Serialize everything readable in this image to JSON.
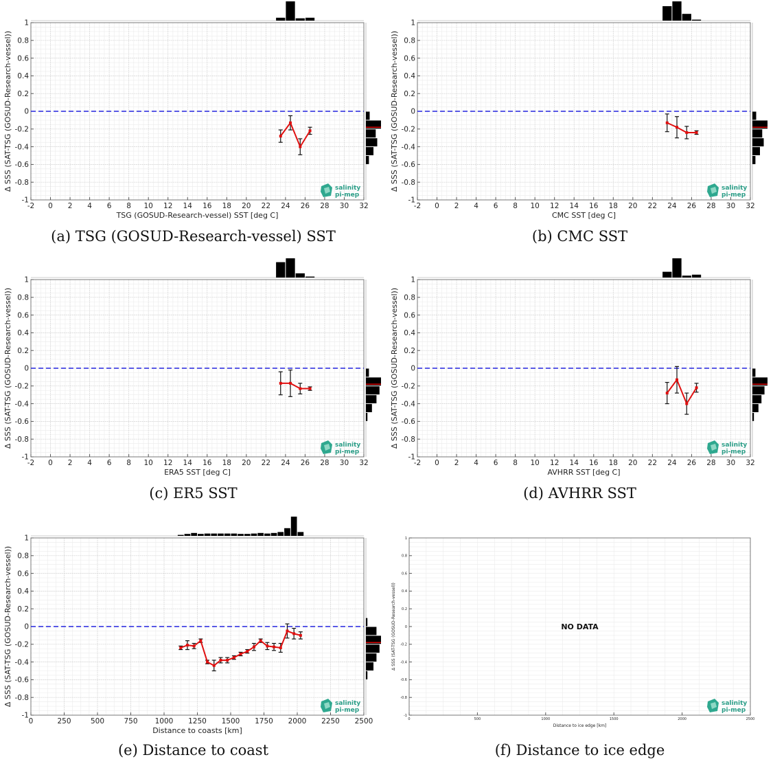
{
  "logo": {
    "line1": "salinity",
    "line2": "pi-mep"
  },
  "chart_data": [
    {
      "type": "line",
      "caption": "(a) TSG (GOSUD-Research-vessel) SST",
      "xlabel": "TSG (GOSUD-Research-vessel) SST [deg C]",
      "ylabel": "Δ SSS (SAT-TSG (GOSUD-Research-vessel))",
      "xlim": [
        -2,
        32
      ],
      "ylim": [
        -1,
        1
      ],
      "xticks": [
        -2,
        0,
        2,
        4,
        6,
        8,
        10,
        12,
        14,
        16,
        18,
        20,
        22,
        24,
        26,
        28,
        30,
        32
      ],
      "yticks": [
        1,
        0.8,
        0.6,
        0.4,
        0.2,
        0,
        -0.2,
        -0.4,
        -0.6,
        -0.8,
        -1
      ],
      "reference_line": 0,
      "series": [
        {
          "x": [
            23.5,
            24.5,
            25.5,
            26.5
          ],
          "y": [
            -0.28,
            -0.13,
            -0.4,
            -0.22
          ],
          "err": [
            0.07,
            0.08,
            0.09,
            0.04
          ]
        }
      ],
      "hist_top": {
        "x": [
          23.5,
          24.5,
          25.5,
          26.5
        ],
        "values": [
          0.15,
          1.0,
          0.12,
          0.15
        ]
      },
      "hist_right": {
        "y": [
          -0.05,
          -0.15,
          -0.25,
          -0.35,
          -0.45,
          -0.55
        ],
        "values": [
          0.25,
          1.0,
          0.65,
          0.75,
          0.5,
          0.2
        ],
        "median": -0.18
      }
    },
    {
      "type": "line",
      "caption": "(b) CMC SST",
      "xlabel": "CMC SST [deg C]",
      "ylabel": "Δ SSS (SAT-TSG (GOSUD-Research-vessel))",
      "xlim": [
        -2,
        32
      ],
      "ylim": [
        -1,
        1
      ],
      "xticks": [
        -2,
        0,
        2,
        4,
        6,
        8,
        10,
        12,
        14,
        16,
        18,
        20,
        22,
        24,
        26,
        28,
        30,
        32
      ],
      "yticks": [
        1,
        0.8,
        0.6,
        0.4,
        0.2,
        0,
        -0.2,
        -0.4,
        -0.6,
        -0.8,
        -1
      ],
      "reference_line": 0,
      "series": [
        {
          "x": [
            23.5,
            24.5,
            25.5,
            26.5
          ],
          "y": [
            -0.13,
            -0.18,
            -0.24,
            -0.24
          ],
          "err": [
            0.1,
            0.12,
            0.07,
            0.02
          ]
        }
      ],
      "hist_top": {
        "x": [
          23.5,
          24.5,
          25.5,
          26.5
        ],
        "values": [
          0.75,
          1.0,
          0.35,
          0.05
        ]
      },
      "hist_right": {
        "y": [
          -0.05,
          -0.15,
          -0.25,
          -0.35,
          -0.45,
          -0.55
        ],
        "values": [
          0.25,
          1.0,
          0.65,
          0.75,
          0.5,
          0.2
        ],
        "median": -0.18
      }
    },
    {
      "type": "line",
      "caption": "(c) ER5 SST",
      "xlabel": "ERA5 SST [deg C]",
      "ylabel": "Δ SSS (SAT-TSG (GOSUD-Research-vessel))",
      "xlim": [
        -2,
        32
      ],
      "ylim": [
        -1,
        1
      ],
      "xticks": [
        -2,
        0,
        2,
        4,
        6,
        8,
        10,
        12,
        14,
        16,
        18,
        20,
        22,
        24,
        26,
        28,
        30,
        32
      ],
      "yticks": [
        1,
        0.8,
        0.6,
        0.4,
        0.2,
        0,
        -0.2,
        -0.4,
        -0.6,
        -0.8,
        -1
      ],
      "reference_line": 0,
      "series": [
        {
          "x": [
            23.5,
            24.5,
            25.5,
            26.5
          ],
          "y": [
            -0.17,
            -0.17,
            -0.23,
            -0.23
          ],
          "err": [
            0.13,
            0.15,
            0.06,
            0.02
          ]
        }
      ],
      "hist_top": {
        "x": [
          23.5,
          24.5,
          25.5,
          26.5
        ],
        "values": [
          0.8,
          1.0,
          0.22,
          0.05
        ]
      },
      "hist_right": {
        "y": [
          -0.05,
          -0.15,
          -0.25,
          -0.35,
          -0.45,
          -0.55
        ],
        "values": [
          0.2,
          1.0,
          0.9,
          0.7,
          0.4,
          0.1
        ],
        "median": -0.18
      }
    },
    {
      "type": "line",
      "caption": "(d) AVHRR SST",
      "xlabel": "AVHRR SST [deg C]",
      "ylabel": "Δ SSS (SAT-TSG (GOSUD-Research-vessel))",
      "xlim": [
        -2,
        32
      ],
      "ylim": [
        -1,
        1
      ],
      "xticks": [
        -2,
        0,
        2,
        4,
        6,
        8,
        10,
        12,
        14,
        16,
        18,
        20,
        22,
        24,
        26,
        28,
        30,
        32
      ],
      "yticks": [
        1,
        0.8,
        0.6,
        0.4,
        0.2,
        0,
        -0.2,
        -0.4,
        -0.6,
        -0.8,
        -1
      ],
      "reference_line": 0,
      "series": [
        {
          "x": [
            23.5,
            24.5,
            25.5,
            26.5
          ],
          "y": [
            -0.28,
            -0.13,
            -0.4,
            -0.22
          ],
          "err": [
            0.12,
            0.15,
            0.12,
            0.05
          ]
        }
      ],
      "hist_top": {
        "x": [
          23.5,
          24.5,
          25.5,
          26.5
        ],
        "values": [
          0.3,
          1.0,
          0.1,
          0.15
        ]
      },
      "hist_right": {
        "y": [
          -0.05,
          -0.15,
          -0.25,
          -0.35,
          -0.45,
          -0.55
        ],
        "values": [
          0.2,
          1.0,
          0.8,
          0.6,
          0.4,
          0.1
        ],
        "median": -0.18
      }
    },
    {
      "type": "line",
      "caption": "(e) Distance to coast",
      "xlabel": "Distance to coasts [km]",
      "ylabel": "Δ SSS (SAT-TSG (GOSUD-Research-vessel))",
      "xlim": [
        0,
        2500
      ],
      "ylim": [
        -1,
        1
      ],
      "xticks": [
        0,
        250,
        500,
        750,
        1000,
        1250,
        1500,
        1750,
        2000,
        2250,
        2500
      ],
      "yticks": [
        1,
        0.8,
        0.6,
        0.4,
        0.2,
        0,
        -0.2,
        -0.4,
        -0.6,
        -0.8,
        -1
      ],
      "reference_line": 0,
      "series": [
        {
          "x": [
            1125,
            1175,
            1225,
            1275,
            1325,
            1375,
            1425,
            1475,
            1525,
            1575,
            1625,
            1675,
            1725,
            1775,
            1825,
            1875,
            1925,
            1975,
            2025
          ],
          "y": [
            -0.24,
            -0.21,
            -0.22,
            -0.16,
            -0.4,
            -0.44,
            -0.38,
            -0.38,
            -0.35,
            -0.31,
            -0.28,
            -0.23,
            -0.16,
            -0.22,
            -0.23,
            -0.24,
            -0.05,
            -0.08,
            -0.1
          ],
          "err": [
            0.02,
            0.05,
            0.03,
            0.02,
            0.02,
            0.06,
            0.03,
            0.03,
            0.02,
            0.02,
            0.02,
            0.04,
            0.02,
            0.04,
            0.04,
            0.05,
            0.08,
            0.06,
            0.04
          ]
        }
      ],
      "hist_top": {
        "x": [
          1125,
          1175,
          1225,
          1275,
          1325,
          1375,
          1425,
          1475,
          1525,
          1575,
          1625,
          1675,
          1725,
          1775,
          1825,
          1875,
          1925,
          1975,
          2025
        ],
        "values": [
          0.05,
          0.1,
          0.15,
          0.1,
          0.12,
          0.12,
          0.12,
          0.12,
          0.12,
          0.1,
          0.1,
          0.12,
          0.15,
          0.12,
          0.15,
          0.2,
          0.4,
          1.0,
          0.2
        ]
      },
      "hist_right": {
        "y": [
          0.05,
          -0.05,
          -0.15,
          -0.25,
          -0.35,
          -0.45,
          -0.55
        ],
        "values": [
          0.1,
          0.7,
          1.0,
          0.9,
          0.7,
          0.5,
          0.1
        ],
        "median": -0.18
      }
    },
    {
      "type": "line",
      "caption": "(f) Distance to ice edge",
      "xlabel": "Distance to ice edge [km]",
      "ylabel": "Δ SSS (SAT-TSG (GOSUD-Research-vessel))",
      "xlim": [
        0,
        2500
      ],
      "ylim": [
        -1,
        1
      ],
      "xticks": [
        0,
        500,
        1000,
        1500,
        2000,
        2500
      ],
      "yticks": [
        1,
        0.8,
        0.6,
        0.4,
        0.2,
        0,
        -0.2,
        -0.4,
        -0.6,
        -0.8,
        -1
      ],
      "no_data": "NO DATA",
      "series": []
    }
  ]
}
